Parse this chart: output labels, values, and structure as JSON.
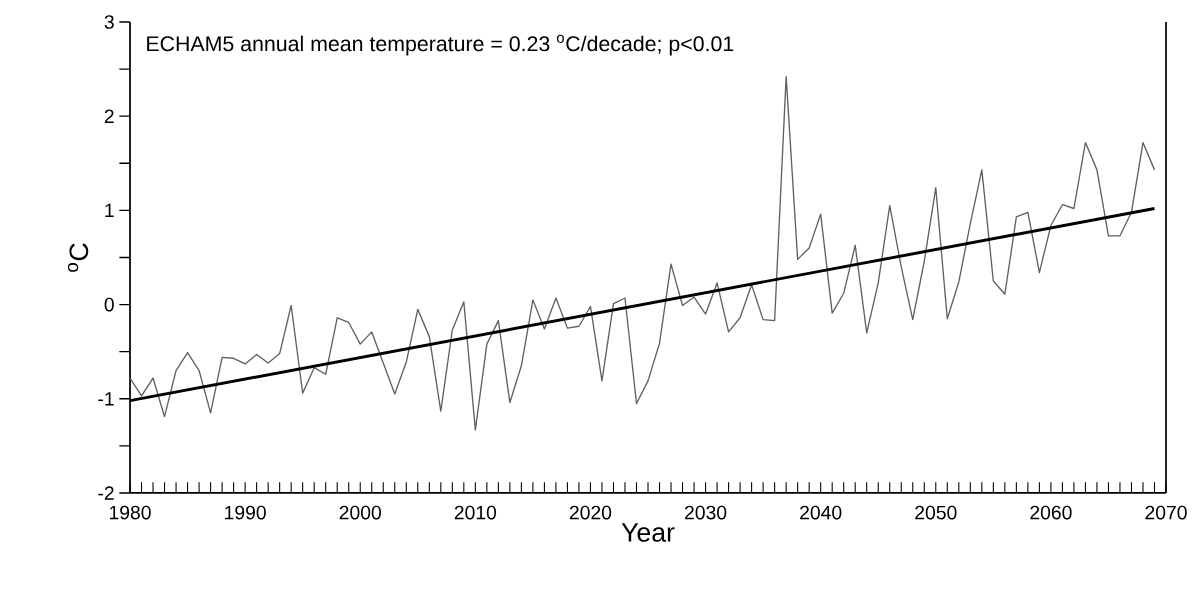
{
  "chart_data": {
    "type": "line",
    "xlabel": "Year",
    "ylabel": "$^{o}$C",
    "annotations": [
      "ECHAM5 annual mean temperature = 0.23 $^{o}$C/decade; p<0.01"
    ],
    "x": [
      1980,
      1981,
      1982,
      1983,
      1984,
      1985,
      1986,
      1987,
      1988,
      1989,
      1990,
      1991,
      1992,
      1993,
      1994,
      1995,
      1996,
      1997,
      1998,
      1999,
      2000,
      2001,
      2002,
      2003,
      2004,
      2005,
      2006,
      2007,
      2008,
      2009,
      2010,
      2011,
      2012,
      2013,
      2014,
      2015,
      2016,
      2017,
      2018,
      2019,
      2020,
      2021,
      2022,
      2023,
      2024,
      2025,
      2026,
      2027,
      2028,
      2029,
      2030,
      2031,
      2032,
      2033,
      2034,
      2035,
      2036,
      2037,
      2038,
      2039,
      2040,
      2041,
      2042,
      2043,
      2044,
      2045,
      2046,
      2047,
      2048,
      2049,
      2050,
      2051,
      2052,
      2053,
      2054,
      2055,
      2056,
      2057,
      2058,
      2059,
      2060,
      2061,
      2062,
      2063,
      2064,
      2065,
      2066,
      2067,
      2068,
      2069
    ],
    "series": [
      {
        "color": "#606060",
        "values": [
          -0.78,
          -0.97,
          -0.78,
          -1.19,
          -0.7,
          -0.51,
          -0.7,
          -1.15,
          -0.56,
          -0.57,
          -0.63,
          -0.53,
          -0.62,
          -0.52,
          -0.01,
          -0.94,
          -0.67,
          -0.74,
          -0.14,
          -0.19,
          -0.42,
          -0.29,
          -0.62,
          -0.95,
          -0.61,
          -0.05,
          -0.34,
          -1.13,
          -0.27,
          0.03,
          -1.33,
          -0.42,
          -0.17,
          -1.04,
          -0.65,
          0.05,
          -0.26,
          0.07,
          -0.25,
          -0.23,
          -0.02,
          -0.81,
          0.01,
          0.07,
          -1.05,
          -0.81,
          -0.41,
          0.43,
          -0.01,
          0.08,
          -0.1,
          0.23,
          -0.29,
          -0.14,
          0.21,
          -0.16,
          -0.17,
          2.42,
          0.48,
          0.6,
          0.96,
          -0.09,
          0.12,
          0.63,
          -0.3,
          0.23,
          1.05,
          0.4,
          -0.16,
          0.46,
          1.24,
          -0.15,
          0.24,
          0.86,
          1.43,
          0.25,
          0.11,
          0.93,
          0.98,
          0.34,
          0.84,
          1.06,
          1.02,
          1.72,
          1.43,
          0.73,
          0.73,
          0.98,
          1.72,
          1.43
        ]
      },
      {
        "type": "line",
        "color": "#000000",
        "x": [
          1980,
          2069
        ],
        "values": [
          -1.02,
          1.02
        ]
      }
    ],
    "xlim": [
      1980,
      2070
    ],
    "xticks": [
      1980,
      {
        "value": 1981,
        "label": null
      },
      {
        "value": 1982,
        "label": null
      },
      {
        "value": 1983,
        "label": null
      },
      {
        "value": 1984,
        "label": null
      },
      {
        "value": 1985,
        "label": null
      },
      {
        "value": 1986,
        "label": null
      },
      {
        "value": 1987,
        "label": null
      },
      {
        "value": 1988,
        "label": null
      },
      {
        "value": 1989,
        "label": null
      },
      1990,
      {
        "value": 1991,
        "label": null
      },
      {
        "value": 1992,
        "label": null
      },
      {
        "value": 1993,
        "label": null
      },
      {
        "value": 1994,
        "label": null
      },
      {
        "value": 1995,
        "label": null
      },
      {
        "value": 1996,
        "label": null
      },
      {
        "value": 1997,
        "label": null
      },
      {
        "value": 1998,
        "label": null
      },
      {
        "value": 1999,
        "label": null
      },
      2000,
      {
        "value": 2001,
        "label": null
      },
      {
        "value": 2002,
        "label": null
      },
      {
        "value": 2003,
        "label": null
      },
      {
        "value": 2004,
        "label": null
      },
      {
        "value": 2005,
        "label": null
      },
      {
        "value": 2006,
        "label": null
      },
      {
        "value": 2007,
        "label": null
      },
      {
        "value": 2008,
        "label": null
      },
      {
        "value": 2009,
        "label": null
      },
      2010,
      {
        "value": 2011,
        "label": null
      },
      {
        "value": 2012,
        "label": null
      },
      {
        "value": 2013,
        "label": null
      },
      {
        "value": 2014,
        "label": null
      },
      {
        "value": 2015,
        "label": null
      },
      {
        "value": 2016,
        "label": null
      },
      {
        "value": 2017,
        "label": null
      },
      {
        "value": 2018,
        "label": null
      },
      {
        "value": 2019,
        "label": null
      },
      2020,
      {
        "value": 2021,
        "label": null
      },
      {
        "value": 2022,
        "label": null
      },
      {
        "value": 2023,
        "label": null
      },
      {
        "value": 2024,
        "label": null
      },
      {
        "value": 2025,
        "label": null
      },
      {
        "value": 2026,
        "label": null
      },
      {
        "value": 2027,
        "label": null
      },
      {
        "value": 2028,
        "label": null
      },
      {
        "value": 2029,
        "label": null
      },
      2030,
      {
        "value": 2031,
        "label": null
      },
      {
        "value": 2032,
        "label": null
      },
      {
        "value": 2033,
        "label": null
      },
      {
        "value": 2034,
        "label": null
      },
      {
        "value": 2035,
        "label": null
      },
      {
        "value": 2036,
        "label": null
      },
      {
        "value": 2037,
        "label": null
      },
      {
        "value": 2038,
        "label": null
      },
      {
        "value": 2039,
        "label": null
      },
      2040,
      {
        "value": 2041,
        "label": null
      },
      {
        "value": 2042,
        "label": null
      },
      {
        "value": 2043,
        "label": null
      },
      {
        "value": 2044,
        "label": null
      },
      {
        "value": 2045,
        "label": null
      },
      {
        "value": 2046,
        "label": null
      },
      {
        "value": 2047,
        "label": null
      },
      {
        "value": 2048,
        "label": null
      },
      {
        "value": 2049,
        "label": null
      },
      2050,
      {
        "value": 2051,
        "label": null
      },
      {
        "value": 2052,
        "label": null
      },
      {
        "value": 2053,
        "label": null
      },
      {
        "value": 2054,
        "label": null
      },
      {
        "value": 2055,
        "label": null
      },
      {
        "value": 2056,
        "label": null
      },
      {
        "value": 2057,
        "label": null
      },
      {
        "value": 2058,
        "label": null
      },
      {
        "value": 2059,
        "label": null
      },
      2060,
      {
        "value": 2061,
        "label": null
      },
      {
        "value": 2062,
        "label": null
      },
      {
        "value": 2063,
        "label": null
      },
      {
        "value": 2064,
        "label": null
      },
      {
        "value": 2065,
        "label": null
      },
      {
        "value": 2066,
        "label": null
      },
      {
        "value": 2067,
        "label": null
      },
      {
        "value": 2068,
        "label": null
      },
      {
        "value": 2069,
        "label": null
      },
      2070
    ],
    "ylim": [
      -2,
      3
    ],
    "yticks": [
      -2,
      {
        "value": -1.5,
        "label": null
      },
      -1,
      {
        "value": -0.5,
        "label": null
      },
      0,
      {
        "value": 0.5,
        "label": null
      },
      1,
      {
        "value": 1.5,
        "label": null
      },
      2,
      {
        "value": 2.5,
        "label": null
      },
      3
    ],
    "marker": "none",
    "line_style": "solid"
  }
}
